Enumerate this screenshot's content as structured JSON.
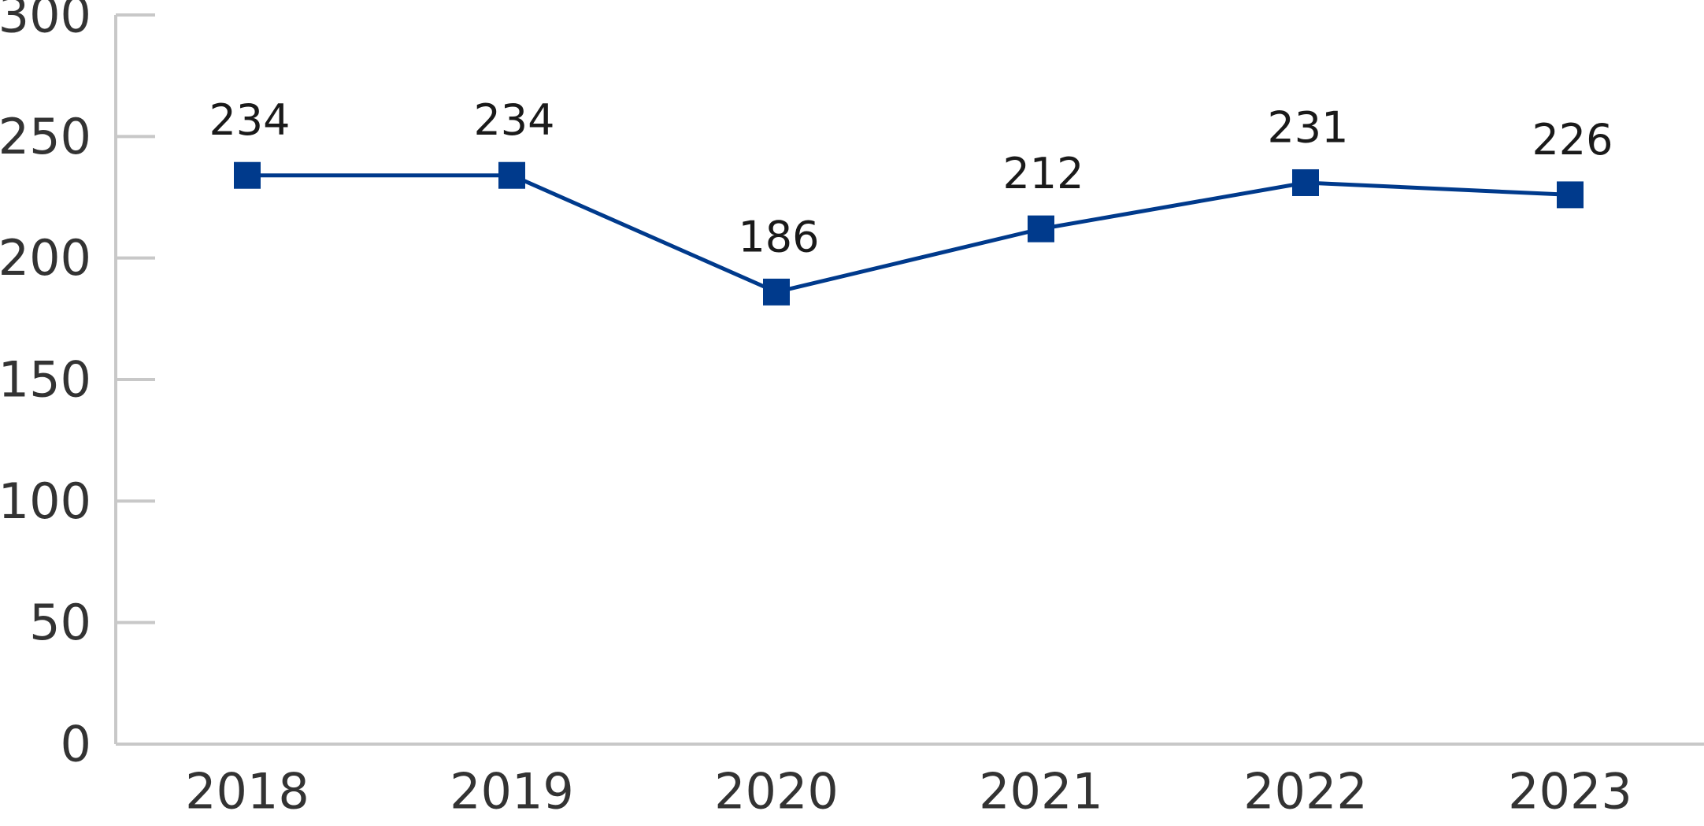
{
  "chart_data": {
    "type": "line",
    "categories": [
      "2018",
      "2019",
      "2020",
      "2021",
      "2022",
      "2023"
    ],
    "series": [
      {
        "values": [
          234,
          234,
          186,
          212,
          231,
          226
        ]
      }
    ],
    "title": "",
    "xlabel": "",
    "ylabel": "",
    "ylim": [
      0,
      300
    ],
    "yticks": [
      0,
      50,
      100,
      150,
      200,
      250,
      300
    ],
    "grid": false,
    "legend": "none",
    "data_labels": true,
    "marker": "square",
    "colors": {
      "series": "#003a8c",
      "axis": "#c8c8c8",
      "tick_text": "#333333",
      "data_label_text": "#1a1a1a"
    }
  }
}
